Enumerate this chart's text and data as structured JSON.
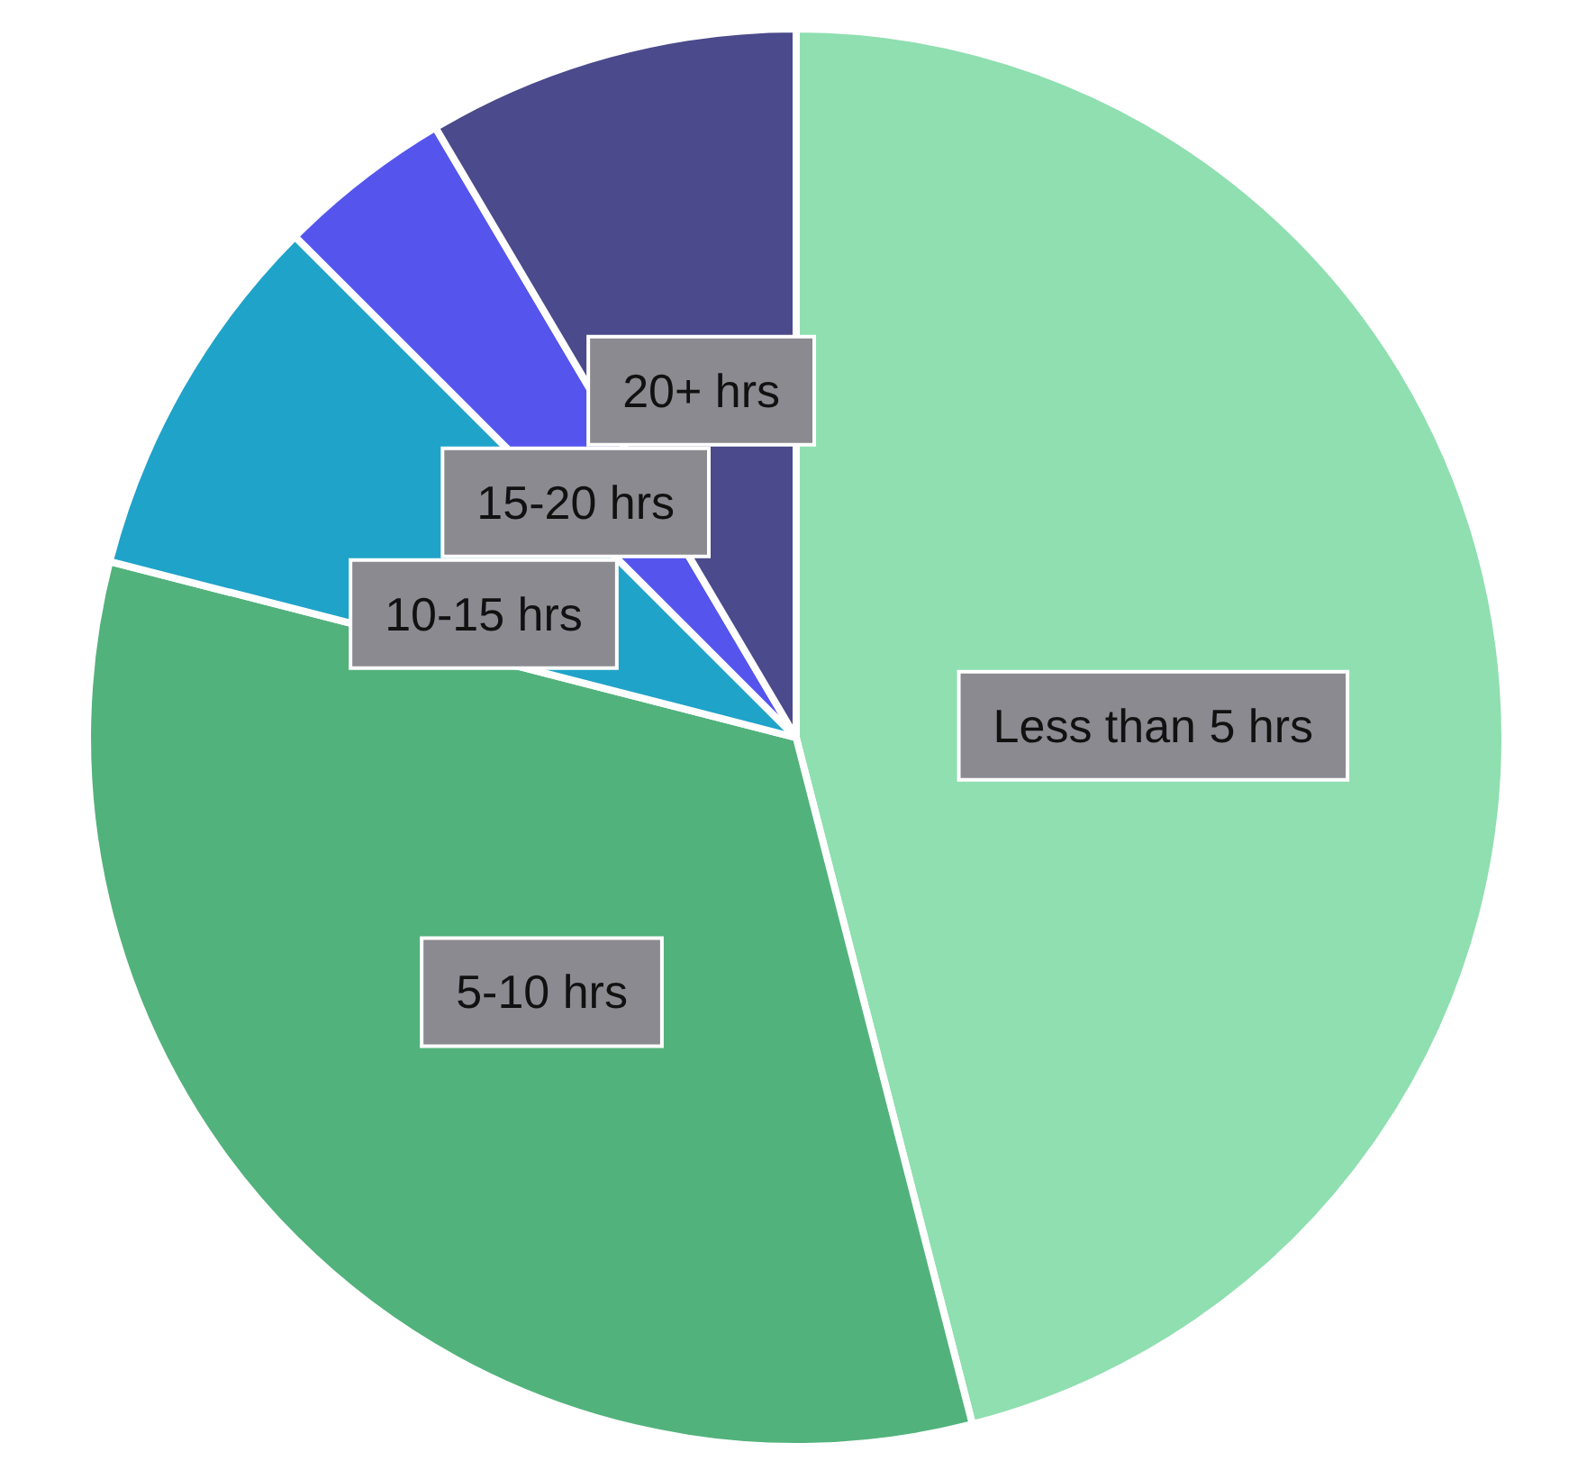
{
  "chart_data": {
    "type": "pie",
    "categories": [
      "Less than 5 hrs",
      "5-10 hrs",
      "10-15 hrs",
      "15-20 hrs",
      "20+ hrs"
    ],
    "values": [
      46,
      33,
      8.5,
      4,
      8.5
    ],
    "colors": [
      "#8fdfb0",
      "#52b27c",
      "#1fa3c9",
      "#5555ee",
      "#4b4a8c"
    ],
    "legend": false
  }
}
